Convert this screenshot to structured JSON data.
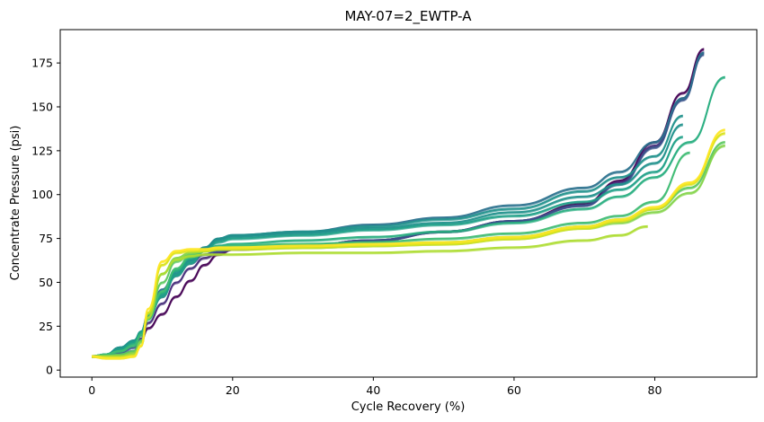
{
  "chart_data": {
    "type": "line",
    "title": "MAY-07=2_EWTP-A",
    "xlabel": "Cycle Recovery (%)",
    "ylabel": "Concentrate Pressure (psi)",
    "xlim": [
      -4.5,
      94.5
    ],
    "ylim": [
      -4,
      194
    ],
    "xticks": [
      0,
      20,
      40,
      60,
      80
    ],
    "yticks": [
      0,
      25,
      50,
      75,
      100,
      125,
      150,
      175
    ],
    "grid": false,
    "legend": "none",
    "colormap": "viridis",
    "series": [
      {
        "color": "#440154",
        "x": [
          0,
          2,
          4,
          6,
          7,
          8,
          10,
          12,
          14,
          16,
          18,
          20,
          30,
          40,
          50,
          60,
          70,
          75,
          80,
          84,
          87
        ],
        "y": [
          8,
          8,
          9,
          11,
          17,
          24,
          32,
          42,
          51,
          60,
          66,
          69,
          71,
          74,
          79,
          85,
          95,
          108,
          130,
          158,
          183
        ]
      },
      {
        "color": "#472d7b",
        "x": [
          0,
          2,
          4,
          6,
          7,
          8,
          10,
          12,
          14,
          16,
          18,
          20,
          30,
          40,
          50,
          60,
          70,
          75,
          80,
          84,
          87
        ],
        "y": [
          8,
          8,
          9,
          11,
          18,
          27,
          38,
          50,
          58,
          64,
          67,
          69,
          71,
          74,
          79,
          85,
          94,
          107,
          128,
          155,
          181
        ]
      },
      {
        "color": "#3b528b",
        "x": [
          0,
          2,
          4,
          6,
          7,
          8,
          10,
          12,
          14,
          16,
          18,
          20,
          30,
          40,
          50,
          60,
          70,
          75,
          80,
          84,
          87
        ],
        "y": [
          8,
          8,
          10,
          13,
          20,
          30,
          42,
          54,
          61,
          66,
          68,
          69,
          71,
          74,
          79,
          85,
          94,
          106,
          127,
          154,
          180
        ]
      },
      {
        "color": "#2c728e",
        "x": [
          0,
          2,
          4,
          6,
          7,
          8,
          10,
          12,
          14,
          16,
          18,
          20,
          30,
          40,
          50,
          60,
          70,
          75,
          80,
          84,
          87
        ],
        "y": [
          8,
          9,
          12,
          16,
          22,
          32,
          46,
          57,
          63,
          70,
          75,
          77,
          79,
          83,
          87,
          94,
          104,
          113,
          130,
          155,
          181
        ]
      },
      {
        "color": "#21918c",
        "x": [
          0,
          2,
          4,
          6,
          7,
          8,
          10,
          12,
          14,
          16,
          18,
          20,
          30,
          40,
          50,
          60,
          70,
          75,
          80,
          84
        ],
        "y": [
          8,
          9,
          13,
          17,
          22,
          31,
          44,
          56,
          63,
          70,
          75,
          77,
          79,
          82,
          86,
          92,
          102,
          110,
          122,
          145
        ]
      },
      {
        "color": "#21918c",
        "x": [
          0,
          2,
          4,
          6,
          7,
          8,
          10,
          12,
          14,
          16,
          18,
          20,
          30,
          40,
          50,
          60,
          70,
          75,
          80,
          84
        ],
        "y": [
          8,
          9,
          13,
          17,
          22,
          31,
          43,
          55,
          62,
          69,
          74,
          76,
          78,
          81,
          84,
          90,
          99,
          106,
          118,
          140
        ]
      },
      {
        "color": "#1fa088",
        "x": [
          0,
          2,
          4,
          6,
          7,
          8,
          10,
          12,
          14,
          16,
          18,
          20,
          30,
          40,
          50,
          60,
          70,
          75,
          80,
          84
        ],
        "y": [
          8,
          9,
          12,
          16,
          22,
          30,
          42,
          54,
          61,
          68,
          73,
          75,
          77,
          80,
          83,
          88,
          96,
          103,
          113,
          133
        ]
      },
      {
        "color": "#28ae80",
        "x": [
          0,
          2,
          4,
          6,
          7,
          8,
          10,
          12,
          14,
          16,
          18,
          20,
          30,
          40,
          50,
          60,
          70,
          75,
          80,
          85,
          90
        ],
        "y": [
          8,
          9,
          11,
          15,
          21,
          30,
          44,
          57,
          64,
          68,
          71,
          72,
          74,
          76,
          79,
          84,
          92,
          99,
          110,
          130,
          167
        ]
      },
      {
        "color": "#3fbc73",
        "x": [
          0,
          2,
          4,
          6,
          7,
          8,
          10,
          12,
          14,
          16,
          18,
          20,
          30,
          40,
          50,
          60,
          70,
          75,
          80,
          85
        ],
        "y": [
          8,
          9,
          11,
          14,
          20,
          29,
          45,
          58,
          65,
          68,
          70,
          71,
          72,
          73,
          75,
          78,
          84,
          88,
          96,
          124
        ]
      },
      {
        "color": "#5ec962",
        "x": [
          0,
          2,
          4,
          6,
          7,
          8,
          10,
          12,
          14,
          16,
          18,
          20,
          30,
          40,
          50,
          60,
          70,
          75,
          80,
          85,
          90
        ],
        "y": [
          8,
          8,
          9,
          11,
          17,
          30,
          50,
          62,
          66,
          68,
          69,
          70,
          70,
          71,
          73,
          76,
          82,
          86,
          92,
          104,
          130
        ]
      },
      {
        "color": "#84d44b",
        "x": [
          0,
          2,
          4,
          6,
          7,
          8,
          10,
          12,
          14,
          16,
          18,
          20,
          30,
          40,
          50,
          60,
          70,
          75,
          80,
          85,
          90
        ],
        "y": [
          8,
          8,
          8,
          10,
          16,
          32,
          55,
          64,
          67,
          68,
          69,
          69,
          70,
          71,
          72,
          75,
          81,
          84,
          90,
          101,
          128
        ]
      },
      {
        "color": "#addc30",
        "x": [
          0,
          2,
          4,
          6,
          7,
          8,
          10,
          12,
          14,
          16,
          18,
          20,
          30,
          40,
          50,
          60,
          70,
          75,
          79
        ],
        "y": [
          8,
          8,
          8,
          9,
          14,
          30,
          55,
          63,
          65,
          66,
          66,
          66,
          67,
          67,
          68,
          70,
          74,
          77,
          82
        ]
      },
      {
        "color": "#d8e219",
        "x": [
          0,
          2,
          4,
          6,
          7,
          8,
          10,
          12,
          14,
          16,
          18,
          20,
          30,
          40,
          50,
          60,
          70,
          75,
          80,
          85,
          90
        ],
        "y": [
          8,
          7,
          7,
          8,
          14,
          33,
          60,
          67,
          68,
          68,
          69,
          69,
          70,
          71,
          72,
          75,
          81,
          85,
          92,
          106,
          135
        ]
      },
      {
        "color": "#fde725",
        "x": [
          0,
          2,
          4,
          6,
          7,
          8,
          10,
          12,
          14,
          16,
          18,
          20,
          30,
          40,
          50,
          60,
          70,
          75,
          80,
          85,
          90
        ],
        "y": [
          8,
          7,
          7,
          8,
          14,
          35,
          62,
          68,
          69,
          69,
          70,
          70,
          71,
          72,
          73,
          76,
          82,
          86,
          93,
          107,
          137
        ]
      }
    ]
  }
}
